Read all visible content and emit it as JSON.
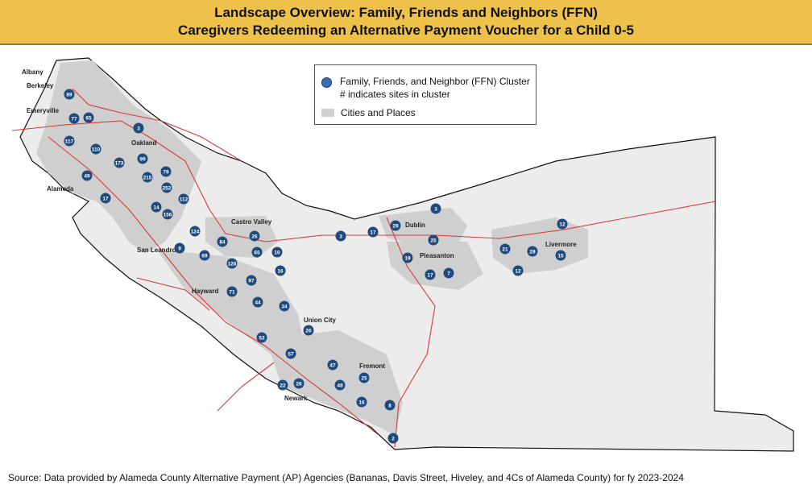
{
  "title": {
    "line1": "Landscape Overview: Family, Friends and Neighbors (FFN)",
    "line2": "Caregivers Redeeming an Alternative Payment Voucher for a Child 0-5"
  },
  "legend": {
    "cluster_label": "Family, Friends, and Neighbor (FFN) Cluster",
    "cluster_sub": "# indicates sites in cluster",
    "places_label": "Cities and Places"
  },
  "source": "Source: Data provided by Alameda County Alternative Payment (AP) Agencies (Bananas, Davis Street,  Hiveley, and 4Cs of Alameda County) for fy 2023-2024",
  "colors": {
    "banner": "#eec24a",
    "marker": "#1f4a7d",
    "road": "#d93a3a",
    "places": "#cfcfcf",
    "county": "#ececec"
  },
  "places": [
    "Albany",
    "Berkeley",
    "Emeryville",
    "Oakland",
    "Alameda",
    "Castro Valley",
    "San Leandro",
    "Hayward",
    "Dublin",
    "Pleasanton",
    "Livermore",
    "Union City",
    "Fremont",
    "Newark"
  ],
  "clusters": [
    "89",
    "77",
    "65",
    "3",
    "117",
    "110",
    "173",
    "99",
    "79",
    "49",
    "215",
    "252",
    "17",
    "112",
    "14",
    "156",
    "124",
    "84",
    "26",
    "10",
    "9",
    "69",
    "65",
    "126",
    "16",
    "97",
    "71",
    "44",
    "34",
    "26",
    "52",
    "57",
    "47",
    "25",
    "26",
    "22",
    "48",
    "16",
    "8",
    "2",
    "3",
    "17",
    "29",
    "3",
    "25",
    "19",
    "17",
    "7",
    "21",
    "28",
    "15",
    "12",
    "12"
  ]
}
